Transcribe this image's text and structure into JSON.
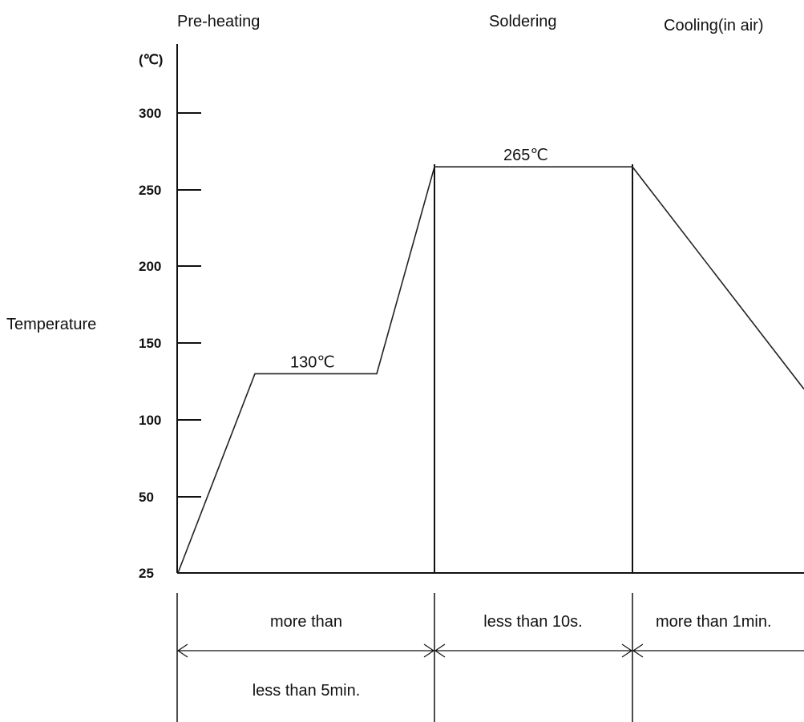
{
  "chart_data": {
    "type": "line",
    "ylabel": "Temperature",
    "yunit": "(℃)",
    "yticks": [
      25,
      50,
      100,
      150,
      200,
      250,
      300
    ],
    "ylim": [
      25,
      320
    ],
    "stages": [
      "Pre-heating",
      "Soldering",
      "Cooling(in air)"
    ],
    "profile": [
      {
        "t": 0,
        "y": 25
      },
      {
        "t": 1,
        "y": 130
      },
      {
        "t": 2,
        "y": 130
      },
      {
        "t": 3,
        "y": 265
      },
      {
        "t": 4,
        "y": 265
      },
      {
        "t": 5,
        "y": 120
      }
    ],
    "annotations": [
      {
        "text": "130℃",
        "value": 130
      },
      {
        "text": "265℃",
        "value": 265
      }
    ],
    "durations": [
      {
        "label_top": "more than",
        "label_bottom": "less than 5min."
      },
      {
        "label_top": "less than 10s.",
        "label_bottom": ""
      },
      {
        "label_top": "more than 1min.",
        "label_bottom": ""
      }
    ]
  }
}
